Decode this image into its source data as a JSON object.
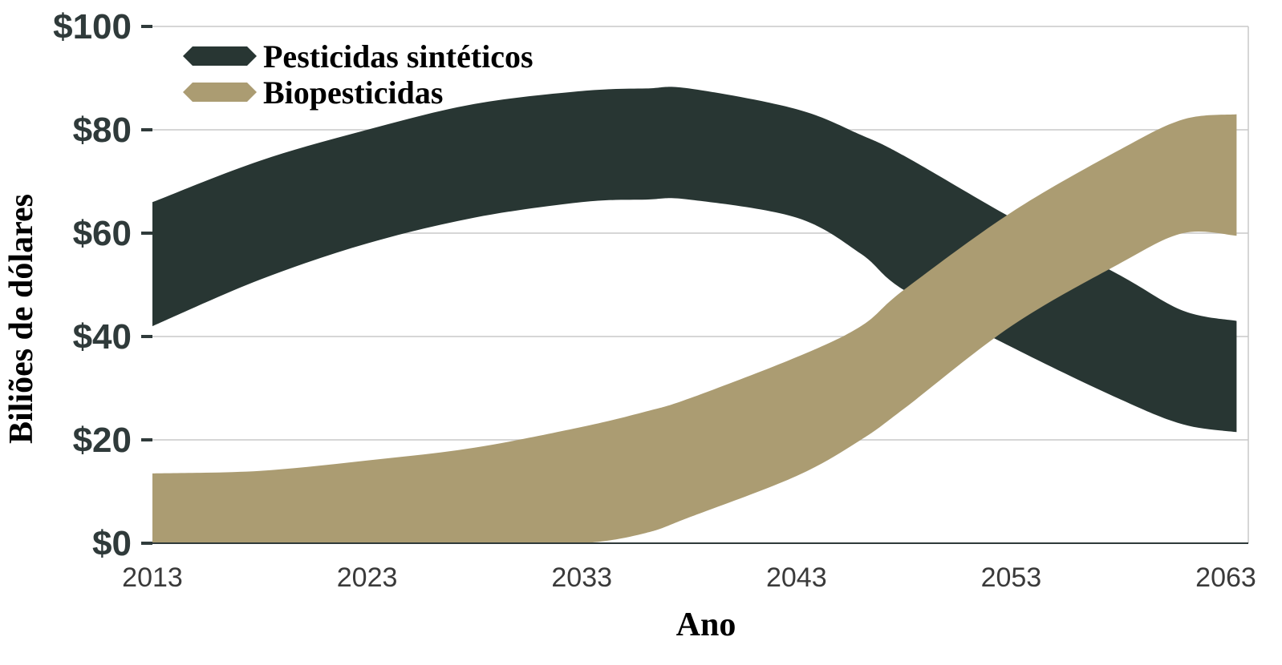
{
  "chart_data": {
    "type": "area",
    "title": "",
    "xlabel": "Ano",
    "ylabel": "Biliões de dólares",
    "xlim": [
      2013,
      2063.5
    ],
    "ylim": [
      0,
      100
    ],
    "grid": true,
    "legend_position": "top-left",
    "x_ticks": [
      2013,
      2023,
      2033,
      2043,
      2053,
      2063
    ],
    "x_tick_labels": [
      "2013",
      "2023",
      "2033",
      "2043",
      "2053",
      "2063"
    ],
    "y_ticks": [
      0,
      20,
      40,
      60,
      80,
      100
    ],
    "y_tick_labels": [
      "$0",
      "$20",
      "$40",
      "$60",
      "$80",
      "$100"
    ],
    "series": [
      {
        "name": "Pesticidas sintéticos",
        "color": "#283633",
        "x": [
          2013,
          2018,
          2023,
          2028,
          2033,
          2036,
          2038,
          2043,
          2046,
          2048,
          2053,
          2058,
          2061,
          2063.5
        ],
        "upper": [
          66,
          74,
          80,
          85,
          87.5,
          88,
          88,
          84,
          79,
          75,
          63,
          52,
          45,
          43
        ],
        "lower": [
          42,
          51,
          58,
          63,
          66,
          66.5,
          66.5,
          63,
          56,
          49,
          38,
          28,
          23,
          21.5
        ]
      },
      {
        "name": "Biopesticidas",
        "color": "#ab9c72",
        "x": [
          2013,
          2018,
          2023,
          2028,
          2033,
          2036,
          2038,
          2043,
          2046,
          2048,
          2053,
          2058,
          2061,
          2063.5
        ],
        "upper": [
          13.5,
          14,
          16,
          18.5,
          22.5,
          25.5,
          28,
          36,
          42,
          49,
          64,
          76,
          82,
          83
        ],
        "lower": [
          0,
          0,
          0,
          0,
          0,
          2,
          5,
          13,
          20,
          26,
          42,
          54,
          60,
          59.5
        ]
      }
    ],
    "legend": [
      {
        "label": "Pesticidas sintéticos",
        "color": "#283633"
      },
      {
        "label": "Biopesticidas",
        "color": "#ab9c72"
      }
    ]
  }
}
